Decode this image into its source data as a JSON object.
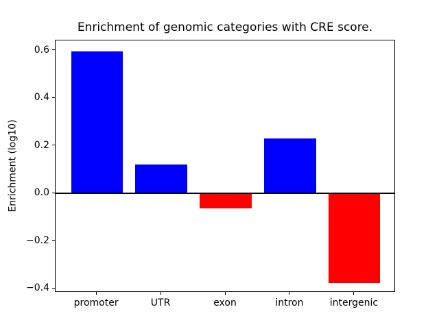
{
  "chart_data": {
    "type": "bar",
    "title": "Enrichment of genomic categories with CRE score.",
    "xlabel": "",
    "ylabel": "Enrichment (log10)",
    "categories": [
      "promoter",
      "UTR",
      "exon",
      "intron",
      "intergenic"
    ],
    "values": [
      0.596,
      0.121,
      -0.063,
      0.23,
      -0.377
    ],
    "bar_colors": [
      "#0000ff",
      "#0000ff",
      "#ff0000",
      "#0000ff",
      "#ff0000"
    ],
    "positive_color": "#0000ff",
    "negative_color": "#ff0000",
    "ylim": [
      -0.417,
      0.643
    ],
    "yticks": [
      0.6,
      0.4,
      0.2,
      0.0,
      -0.2,
      -0.4
    ],
    "ytick_labels": [
      "0.6",
      "0.4",
      "0.2",
      "0.0",
      "−0.2",
      "−0.4"
    ],
    "bar_width_fraction": 0.8,
    "x_margin_units": 0.64,
    "grid": false,
    "legend": null,
    "zero_line": true,
    "axis_color": "#000000",
    "background_color": "#ffffff"
  }
}
